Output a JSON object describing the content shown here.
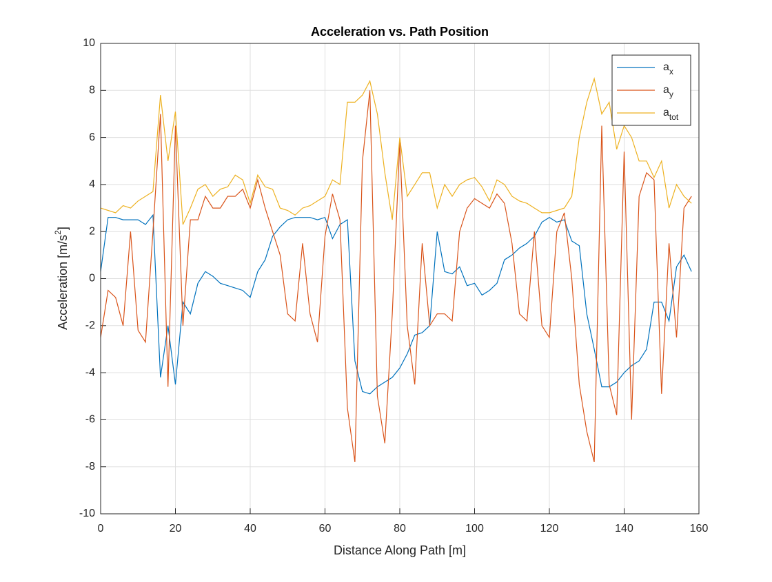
{
  "chart_data": {
    "type": "line",
    "title": "Acceleration vs. Path Position",
    "x_label": "Distance Along Path [m]",
    "y_label": "Acceleration [m/s2]",
    "x": [
      0,
      2,
      4,
      6,
      8,
      10,
      12,
      14,
      16,
      18,
      20,
      22,
      24,
      26,
      28,
      30,
      32,
      34,
      36,
      38,
      40,
      42,
      44,
      46,
      48,
      50,
      52,
      54,
      56,
      58,
      60,
      62,
      64,
      66,
      68,
      70,
      72,
      74,
      76,
      78,
      80,
      82,
      84,
      86,
      88,
      90,
      92,
      94,
      96,
      98,
      100,
      102,
      104,
      106,
      108,
      110,
      112,
      114,
      116,
      118,
      120,
      122,
      124,
      126,
      128,
      130,
      132,
      134,
      136,
      138,
      140,
      142,
      144,
      146,
      148,
      150,
      152,
      154,
      156,
      158
    ],
    "series": [
      {
        "name": "ax",
        "color": "#0072bd",
        "values": [
          0.3,
          2.6,
          2.6,
          2.5,
          2.5,
          2.5,
          2.3,
          2.7,
          -4.2,
          -2.0,
          -4.5,
          -1.0,
          -1.5,
          -0.2,
          0.3,
          0.1,
          -0.2,
          -0.3,
          -0.4,
          -0.5,
          -0.8,
          0.3,
          0.8,
          1.8,
          2.2,
          2.5,
          2.6,
          2.6,
          2.6,
          2.5,
          2.6,
          1.7,
          2.3,
          2.5,
          -3.5,
          -4.8,
          -4.9,
          -4.6,
          -4.4,
          -4.2,
          -3.8,
          -3.2,
          -2.4,
          -2.3,
          -2.0,
          2.0,
          0.3,
          0.2,
          0.5,
          -0.3,
          -0.2,
          -0.7,
          -0.5,
          -0.2,
          0.8,
          1.0,
          1.3,
          1.5,
          1.8,
          2.4,
          2.6,
          2.4,
          2.5,
          1.6,
          1.4,
          -1.5,
          -3.0,
          -4.6,
          -4.6,
          -4.4,
          -4.0,
          -3.7,
          -3.5,
          -3.0,
          -1.0,
          -1.0,
          -1.8,
          0.5,
          1.0,
          0.3
        ]
      },
      {
        "name": "ay",
        "color": "#d95319",
        "values": [
          -2.5,
          -0.5,
          -0.8,
          -2.0,
          2.0,
          -2.2,
          -2.7,
          2.0,
          7.0,
          -4.6,
          6.5,
          -2.0,
          2.5,
          2.5,
          3.5,
          3.0,
          3.0,
          3.5,
          3.5,
          3.8,
          3.0,
          4.2,
          3.0,
          2.0,
          1.0,
          -1.5,
          -1.8,
          1.5,
          -1.5,
          -2.7,
          1.8,
          3.6,
          2.5,
          -5.5,
          -7.8,
          5.0,
          8.0,
          -5.0,
          -7.0,
          -1.5,
          5.8,
          -2.0,
          -4.5,
          1.5,
          -2.0,
          -1.5,
          -1.5,
          -1.8,
          2.0,
          3.0,
          3.4,
          3.2,
          3.0,
          3.6,
          3.2,
          1.5,
          -1.5,
          -1.8,
          2.0,
          -2.0,
          -2.5,
          2.0,
          2.8,
          0.0,
          -4.5,
          -6.5,
          -7.8,
          6.5,
          -4.5,
          -5.8,
          5.4,
          -6.0,
          3.5,
          4.5,
          4.2,
          -4.9,
          1.5,
          -2.5,
          3.0,
          3.5
        ]
      },
      {
        "name": "atot",
        "color": "#edb120",
        "values": [
          3.0,
          2.9,
          2.8,
          3.1,
          3.0,
          3.3,
          3.5,
          3.7,
          7.8,
          5.0,
          7.1,
          2.3,
          3.0,
          3.8,
          4.0,
          3.5,
          3.8,
          3.9,
          4.4,
          4.2,
          3.2,
          4.4,
          3.9,
          3.8,
          3.0,
          2.9,
          2.7,
          3.0,
          3.1,
          3.3,
          3.5,
          4.2,
          4.0,
          7.5,
          7.5,
          7.8,
          8.4,
          7.0,
          4.5,
          2.5,
          6.0,
          3.5,
          4.0,
          4.5,
          4.5,
          3.0,
          4.0,
          3.5,
          4.0,
          4.2,
          4.3,
          3.9,
          3.3,
          4.2,
          4.0,
          3.5,
          3.3,
          3.2,
          3.0,
          2.8,
          2.8,
          2.9,
          3.0,
          3.5,
          6.0,
          7.5,
          8.5,
          7.0,
          7.5,
          5.5,
          6.5,
          6.0,
          5.0,
          5.0,
          4.3,
          5.0,
          3.0,
          4.0,
          3.5,
          3.2
        ]
      }
    ],
    "xlim": [
      0,
      160
    ],
    "xticks": [
      0,
      20,
      40,
      60,
      80,
      100,
      120,
      140,
      160
    ],
    "ylim": [
      -10,
      10
    ],
    "yticks": [
      -10,
      -8,
      -6,
      -4,
      -2,
      0,
      2,
      4,
      6,
      8,
      10
    ],
    "grid": true,
    "legend": "northeast"
  }
}
